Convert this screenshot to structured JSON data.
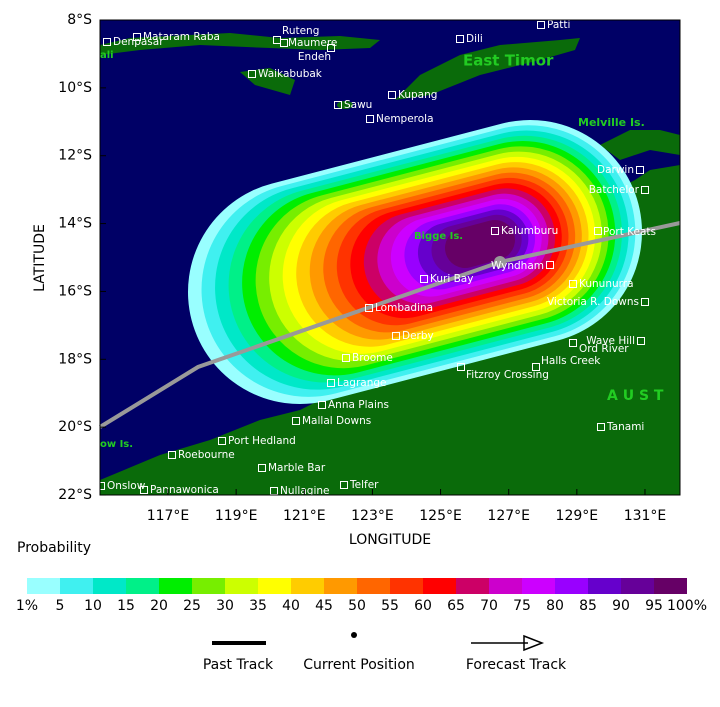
{
  "map": {
    "lat_ticks": [
      {
        "value": 8,
        "label": "8°S"
      },
      {
        "value": 10,
        "label": "10°S"
      },
      {
        "value": 12,
        "label": "12°S"
      },
      {
        "value": 14,
        "label": "14°S"
      },
      {
        "value": 16,
        "label": "16°S"
      },
      {
        "value": 18,
        "label": "18°S"
      },
      {
        "value": 20,
        "label": "20°S"
      },
      {
        "value": 22,
        "label": "22°S"
      }
    ],
    "lon_ticks": [
      {
        "value": 117,
        "label": "117°E"
      },
      {
        "value": 119,
        "label": "119°E"
      },
      {
        "value": 121,
        "label": "121°E"
      },
      {
        "value": 123,
        "label": "123°E"
      },
      {
        "value": 125,
        "label": "125°E"
      },
      {
        "value": 127,
        "label": "127°E"
      },
      {
        "value": 129,
        "label": "129°E"
      },
      {
        "value": 131,
        "label": "131°E"
      }
    ],
    "y_label": "LATITUDE",
    "x_label": "LONGITUDE",
    "regions": [
      "East Timor",
      "Melville Is.",
      "Bigge Is.",
      "A U S T",
      "ow Is.",
      "ali"
    ],
    "places": [
      "Mataram Raba",
      "Denpasar",
      "Ruteng",
      "Maumere",
      "Endeh",
      "Dili",
      "Patti",
      "Waikabubak",
      "Kupang",
      "Sawu",
      "Nemperola",
      "Darwin",
      "Batchelor",
      "Port Keats",
      "Kalumburu",
      "Wyndham",
      "Kuri Bay",
      "Kununurra",
      "Lombadina",
      "Victoria R. Downs",
      "Derby",
      "Wave Hill",
      "Ord River",
      "Broome",
      "Halls Creek",
      "Fitzroy Crossing",
      "Lagrange",
      "Anna Plains",
      "Mallal Downs",
      "Port Hedland",
      "Tanami",
      "Roebourne",
      "Marble Bar",
      "Onslow",
      "Pannawonica",
      "Telfer",
      "Nullagine"
    ]
  },
  "colorbar": {
    "title": "Probability",
    "labels": [
      "1%",
      "5",
      "10",
      "15",
      "20",
      "25",
      "30",
      "35",
      "40",
      "45",
      "50",
      "55",
      "60",
      "65",
      "70",
      "75",
      "80",
      "85",
      "90",
      "95",
      "100%"
    ],
    "colors": [
      "#99ffff",
      "#40f0f0",
      "#00e8c8",
      "#00f088",
      "#00ee00",
      "#77ee00",
      "#ccff00",
      "#ffff00",
      "#ffcc00",
      "#ff9900",
      "#ff6600",
      "#ff3300",
      "#ff0000",
      "#cc0066",
      "#cc00cc",
      "#cc00ff",
      "#9900ff",
      "#6600cc",
      "#660099",
      "#660066"
    ]
  },
  "legend": [
    "Past Track",
    "Current Position",
    "Forecast Track"
  ]
}
